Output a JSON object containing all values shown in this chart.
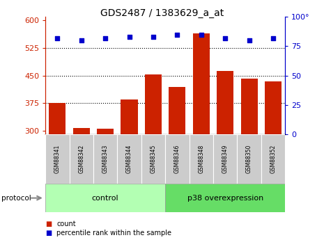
{
  "title": "GDS2487 / 1383629_a_at",
  "samples": [
    "GSM88341",
    "GSM88342",
    "GSM88343",
    "GSM88344",
    "GSM88345",
    "GSM88346",
    "GSM88348",
    "GSM88349",
    "GSM88350",
    "GSM88352"
  ],
  "counts": [
    375,
    308,
    305,
    385,
    453,
    420,
    565,
    462,
    442,
    435
  ],
  "percentile_ranks": [
    82,
    80,
    82,
    83,
    83,
    85,
    85,
    82,
    80,
    82
  ],
  "groups": [
    "control",
    "control",
    "control",
    "control",
    "control",
    "p38 overexpression",
    "p38 overexpression",
    "p38 overexpression",
    "p38 overexpression",
    "p38 overexpression"
  ],
  "group_colors": {
    "control": "#b3ffb3",
    "p38 overexpression": "#66dd66"
  },
  "bar_color": "#cc2200",
  "dot_color": "#0000cc",
  "ylim_left": [
    290,
    610
  ],
  "ylim_right": [
    0,
    100
  ],
  "yticks_left": [
    300,
    375,
    450,
    525,
    600
  ],
  "yticks_right": [
    0,
    25,
    50,
    75,
    100
  ],
  "grid_values": [
    375,
    450,
    525
  ],
  "left_axis_color": "#cc2200",
  "right_axis_color": "#0000cc",
  "legend_count_label": "count",
  "legend_pct_label": "percentile rank within the sample",
  "protocol_label": "protocol",
  "sample_box_color": "#cccccc",
  "bg_color": "#ffffff"
}
